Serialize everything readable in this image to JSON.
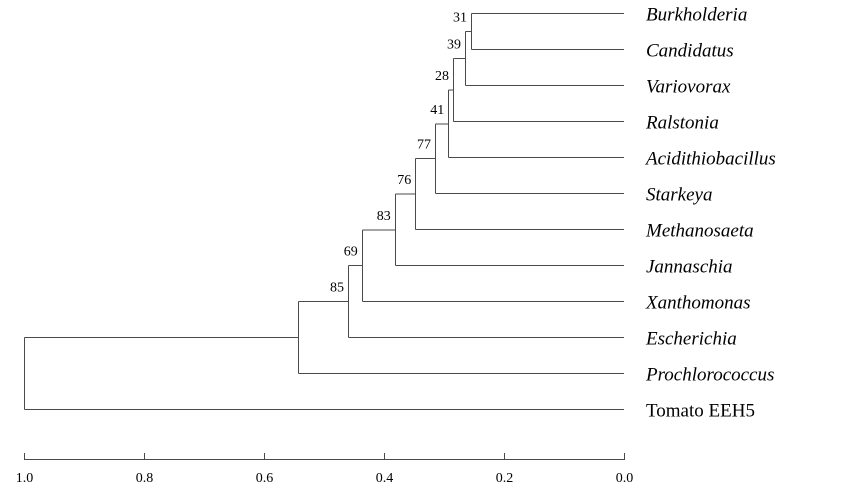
{
  "tree": {
    "leaves": [
      {
        "label": "Burkholderia",
        "italic": true
      },
      {
        "label": "Candidatus",
        "italic": true
      },
      {
        "label": "Variovorax",
        "italic": true
      },
      {
        "label": "Ralstonia",
        "italic": true
      },
      {
        "label": "Acidithiobacillus",
        "italic": true
      },
      {
        "label": "Starkeya",
        "italic": true
      },
      {
        "label": "Methanosaeta",
        "italic": true
      },
      {
        "label": "Jannaschia",
        "italic": true
      },
      {
        "label": "Xanthomonas",
        "italic": true
      },
      {
        "label": "Escherichia",
        "italic": true
      },
      {
        "label": "Prochlorococcus",
        "italic": true
      },
      {
        "label": "Tomato EEH5",
        "italic": false
      }
    ],
    "nodes": [
      {
        "id": "n1",
        "similarity": 0.255,
        "children": [
          0,
          1
        ],
        "bootstrap": "31"
      },
      {
        "id": "n2",
        "similarity": 0.265,
        "children": [
          "n1",
          2
        ],
        "bootstrap": "39"
      },
      {
        "id": "n3",
        "similarity": 0.285,
        "children": [
          "n2",
          3
        ],
        "bootstrap": "28"
      },
      {
        "id": "n4",
        "similarity": 0.293,
        "children": [
          "n3",
          4
        ],
        "bootstrap": "41"
      },
      {
        "id": "n5",
        "similarity": 0.315,
        "children": [
          "n4",
          5
        ],
        "bootstrap": "77"
      },
      {
        "id": "n6",
        "similarity": 0.348,
        "children": [
          "n5",
          6
        ],
        "bootstrap": "76"
      },
      {
        "id": "n7",
        "similarity": 0.382,
        "children": [
          "n6",
          7
        ],
        "bootstrap": "83"
      },
      {
        "id": "n8",
        "similarity": 0.437,
        "children": [
          "n7",
          8
        ],
        "bootstrap": "69"
      },
      {
        "id": "n9",
        "similarity": 0.46,
        "children": [
          "n8",
          9
        ],
        "bootstrap": "85"
      },
      {
        "id": "n10",
        "similarity": 0.543,
        "children": [
          "n9",
          10
        ],
        "bootstrap": ""
      },
      {
        "id": "n11",
        "similarity": 1.0,
        "children": [
          "n10",
          11
        ],
        "bootstrap": ""
      }
    ]
  },
  "axis": {
    "min": 0.0,
    "max": 1.0,
    "reversed": true,
    "ticks": [
      "1.0",
      "0.8",
      "0.6",
      "0.4",
      "0.2",
      "0.0"
    ],
    "tick_values": [
      1.0,
      0.8,
      0.6,
      0.4,
      0.2,
      0.0
    ]
  },
  "colors": {
    "branch": "#4a4a4a",
    "text": "#000000"
  }
}
